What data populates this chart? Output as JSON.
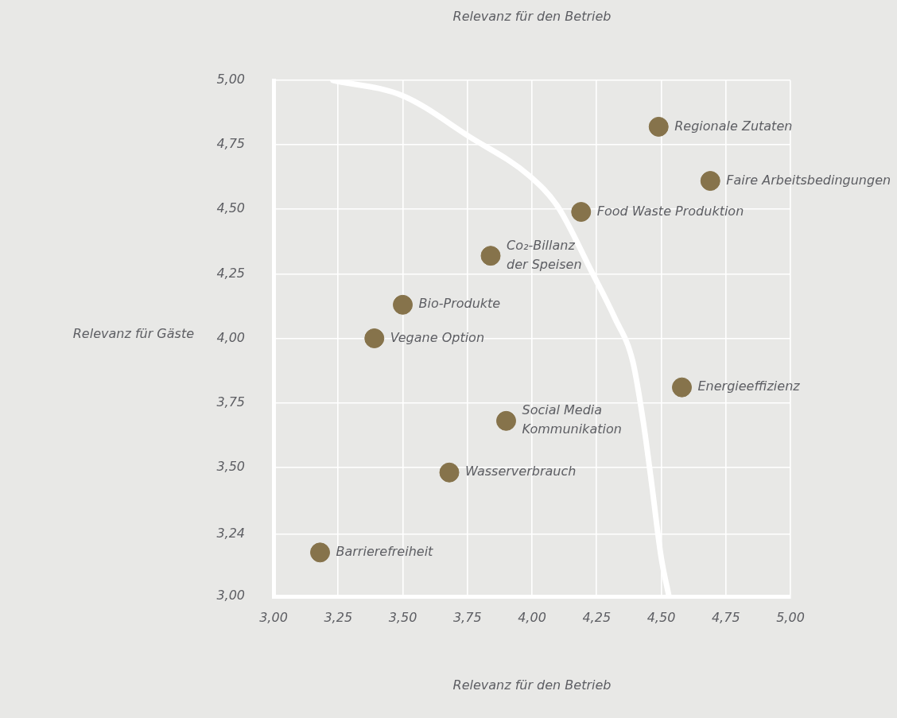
{
  "chart_data": {
    "type": "scatter",
    "title": "Relevanz für den Betrieb",
    "xlabel": "Relevanz für den Betrieb",
    "ylabel": "Relevanz für Gäste",
    "xlim": [
      3,
      5
    ],
    "ylim": [
      3,
      5
    ],
    "xticks": [
      {
        "value": 3,
        "label": "3,00"
      },
      {
        "value": 3.25,
        "label": "3,25"
      },
      {
        "value": 3.5,
        "label": "3,50"
      },
      {
        "value": 3.75,
        "label": "3,75"
      },
      {
        "value": 4,
        "label": "4,00"
      },
      {
        "value": 4.25,
        "label": "4,25"
      },
      {
        "value": 4.5,
        "label": "4,50"
      },
      {
        "value": 4.75,
        "label": "4,75"
      },
      {
        "value": 5,
        "label": "5,00"
      }
    ],
    "yticks": [
      {
        "value": 3,
        "label": "3,00"
      },
      {
        "value": 3.24,
        "label": "3,24"
      },
      {
        "value": 3.5,
        "label": "3,50"
      },
      {
        "value": 3.75,
        "label": "3,75"
      },
      {
        "value": 4,
        "label": "4,00"
      },
      {
        "value": 4.25,
        "label": "4,25"
      },
      {
        "value": 4.5,
        "label": "4,50"
      },
      {
        "value": 4.75,
        "label": "4,75"
      },
      {
        "value": 5,
        "label": "5,00"
      }
    ],
    "grid": true,
    "marker": "circle",
    "series": [
      {
        "type": "line",
        "marker": "none",
        "color": "#ffffff",
        "x": [
          3.23,
          3.5,
          3.76,
          3.99,
          4.1,
          4.23,
          4.32,
          4.39,
          4.43,
          4.46,
          4.5,
          4.53
        ],
        "values": [
          5.0,
          4.94,
          4.78,
          4.63,
          4.51,
          4.26,
          4.08,
          3.91,
          3.68,
          3.46,
          3.15,
          3.0
        ]
      },
      {
        "name": "Regionale Zutaten",
        "color": "#86734b",
        "x": [
          4.49
        ],
        "values": [
          4.82
        ]
      },
      {
        "name": "Faire Arbeitsbedingungen",
        "color": "#86734b",
        "x": [
          4.69
        ],
        "values": [
          4.61
        ]
      },
      {
        "name": "Food Waste Produktion",
        "color": "#86734b",
        "x": [
          4.19
        ],
        "values": [
          4.49
        ]
      },
      {
        "name": "Co₂-Billanz\nder Speisen",
        "color": "#86734b",
        "x": [
          3.84
        ],
        "values": [
          4.32
        ]
      },
      {
        "name": "Bio-Produkte",
        "color": "#86734b",
        "x": [
          3.5
        ],
        "values": [
          4.13
        ]
      },
      {
        "name": "Vegane Option",
        "color": "#86734b",
        "x": [
          3.39
        ],
        "values": [
          4.0
        ]
      },
      {
        "name": "Energieeffizienz",
        "color": "#86734b",
        "x": [
          4.58
        ],
        "values": [
          3.81
        ]
      },
      {
        "name": "Social Media\nKommunikation",
        "color": "#86734b",
        "x": [
          3.9
        ],
        "values": [
          3.68
        ]
      },
      {
        "name": "Wasserverbrauch",
        "color": "#86734b",
        "x": [
          3.68
        ],
        "values": [
          3.48
        ]
      },
      {
        "name": "Barrierefreiheit",
        "color": "#86734b",
        "x": [
          3.18
        ],
        "values": [
          3.17
        ]
      }
    ]
  }
}
